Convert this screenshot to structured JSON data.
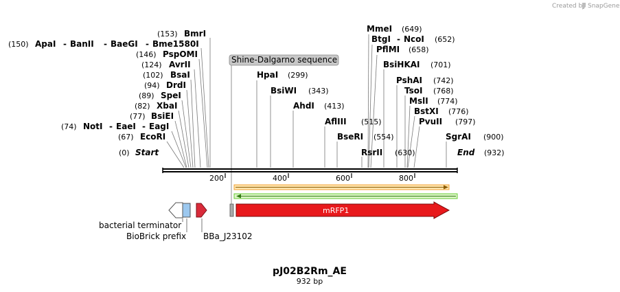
{
  "header": {
    "credit": "Created by",
    "brand": "SnapGene"
  },
  "plasmid": {
    "name": "pJ02B2Rm_AE",
    "size": "932 bp",
    "length": 932
  },
  "axis": {
    "ticks": [
      "200",
      "400",
      "600",
      "800"
    ]
  },
  "ends": {
    "start": {
      "name": "Start",
      "pos": "(0)"
    },
    "end": {
      "name": "End",
      "pos": "(932)"
    }
  },
  "sites_left": [
    {
      "pos": "(153)",
      "names": [
        "BmrI"
      ]
    },
    {
      "pos": "(150)",
      "names": [
        "ApaI",
        "BanII",
        "BaeGI",
        "Bme1580I"
      ]
    },
    {
      "pos": "(146)",
      "names": [
        "PspOMI"
      ]
    },
    {
      "pos": "(124)",
      "names": [
        "AvrII"
      ]
    },
    {
      "pos": "(102)",
      "names": [
        "BsaI"
      ]
    },
    {
      "pos": "(94)",
      "names": [
        "DrdI"
      ]
    },
    {
      "pos": "(89)",
      "names": [
        "SpeI"
      ]
    },
    {
      "pos": "(82)",
      "names": [
        "XbaI"
      ]
    },
    {
      "pos": "(77)",
      "names": [
        "BsiEI"
      ]
    },
    {
      "pos": "(74)",
      "names": [
        "NotI",
        "EaeI",
        "EagI"
      ]
    },
    {
      "pos": "(67)",
      "names": [
        "EcoRI"
      ]
    }
  ],
  "sites_mid": [
    {
      "name": "HpaI",
      "pos": "(299)"
    },
    {
      "name": "BsiWI",
      "pos": "(343)"
    },
    {
      "name": "AhdI",
      "pos": "(413)"
    },
    {
      "name": "AflIII",
      "pos": "(515)"
    },
    {
      "name": "BseRI",
      "pos": "(554)"
    },
    {
      "name": "RsrII",
      "pos": "(630)"
    }
  ],
  "sites_right": [
    {
      "name": "MmeI",
      "pos": "(649)"
    },
    {
      "name": "BtgI",
      "name2": "NcoI",
      "pos": "(652)"
    },
    {
      "name": "PflMI",
      "pos": "(658)"
    },
    {
      "name": "BsiHKAI",
      "pos": "(701)"
    },
    {
      "name": "PshAI",
      "pos": "(742)"
    },
    {
      "name": "TsoI",
      "pos": "(768)"
    },
    {
      "name": "MslI",
      "pos": "(774)"
    },
    {
      "name": "BstXI",
      "pos": "(776)"
    },
    {
      "name": "PvuII",
      "pos": "(797)"
    },
    {
      "name": "SgrAI",
      "pos": "(900)"
    }
  ],
  "features": {
    "shine_dalgarno": "Shine-Dalgarno sequence",
    "mrfp1": "mRFP1",
    "bacterial_terminator": "bacterial terminator",
    "biobrick_prefix": "BioBrick prefix",
    "promoter": "BBa_J23102"
  },
  "colors": {
    "mrfp1": "#e8191c",
    "promoter": "#d92b3a",
    "prefix": "#9cc8ef",
    "orf_top": "#f0a030",
    "orf_bottom": "#66cc33"
  }
}
